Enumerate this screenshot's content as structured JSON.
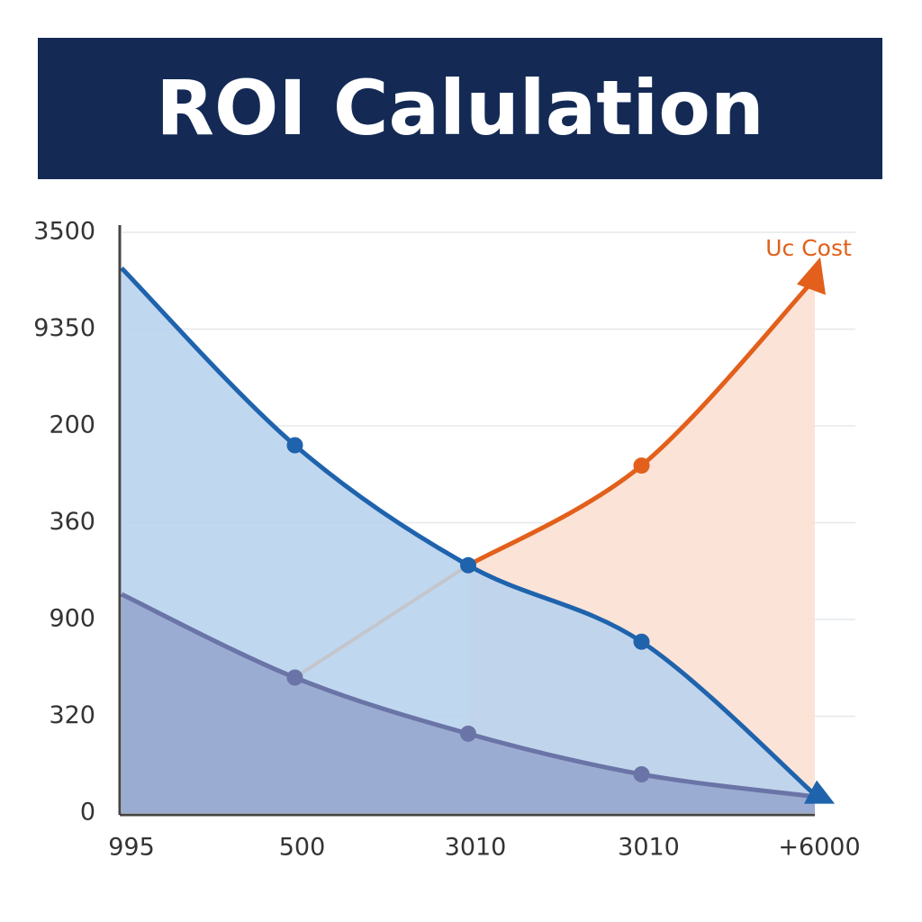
{
  "chart_data": {
    "type": "area-line",
    "title": "ROI Calulation",
    "categories": [
      "995",
      "500",
      "3010",
      "3010",
      "+6000"
    ],
    "ylim": [
      0,
      6
    ],
    "yticks": [
      {
        "value": 0,
        "label": "0"
      },
      {
        "value": 1,
        "label": "320"
      },
      {
        "value": 2,
        "label": "900"
      },
      {
        "value": 3,
        "label": "360"
      },
      {
        "value": 4,
        "label": "200"
      },
      {
        "value": 5,
        "label": "9350"
      },
      {
        "value": 6,
        "label": "3500"
      }
    ],
    "grid": true,
    "series": [
      {
        "color": "#1f63ad",
        "fill": "#b9d3ee",
        "values": [
          5.63,
          3.8,
          2.56,
          1.77,
          0.19
        ]
      },
      {
        "color": "#6a74a6",
        "fill": "#8f9dc9",
        "values": [
          2.26,
          1.4,
          0.82,
          0.4,
          0.17
        ]
      },
      {
        "name": "Uc Cost",
        "color": "#e2601b",
        "fill": "#fbe1d3",
        "values": [
          null,
          null,
          2.56,
          3.59,
          5.52
        ]
      }
    ]
  }
}
